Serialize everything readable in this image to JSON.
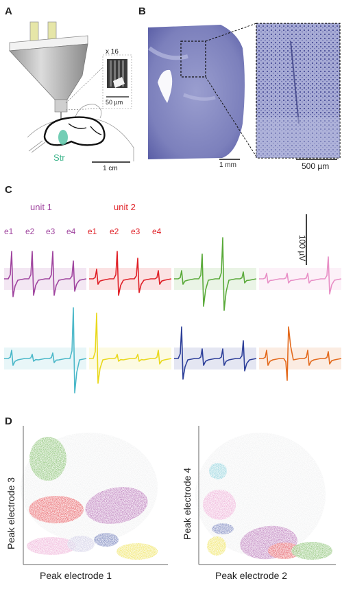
{
  "panels": {
    "a": {
      "label": "A",
      "zoom": "x 16",
      "inset_scale": "50 µm",
      "region": "Str",
      "scale": "1 cm"
    },
    "b": {
      "label": "B",
      "scale_main": "1 mm",
      "scale_zoom": "500 µm"
    },
    "c": {
      "label": "C",
      "unit1": "unit 1",
      "unit2": "unit 2",
      "unit1_electrodes": [
        "e1",
        "e2",
        "e3",
        "e4"
      ],
      "unit2_electrodes": [
        "e1",
        "e2",
        "e3",
        "e4"
      ],
      "scale": "100 µV",
      "colors": {
        "unit1": "#a0459f",
        "unit2": "#e02027",
        "unit3": "#5aaa3a",
        "unit4": "#e88fc6",
        "unit5": "#4bb8c9",
        "unit6": "#e9d81c",
        "unit7": "#2d3f99",
        "unit8": "#e36a1d"
      }
    },
    "d": {
      "label": "D",
      "left_xlabel": "Peak electrode 1",
      "left_ylabel": "Peak electrode 3",
      "right_xlabel": "Peak electrode 2",
      "right_ylabel": "Peak electrode 4"
    }
  }
}
